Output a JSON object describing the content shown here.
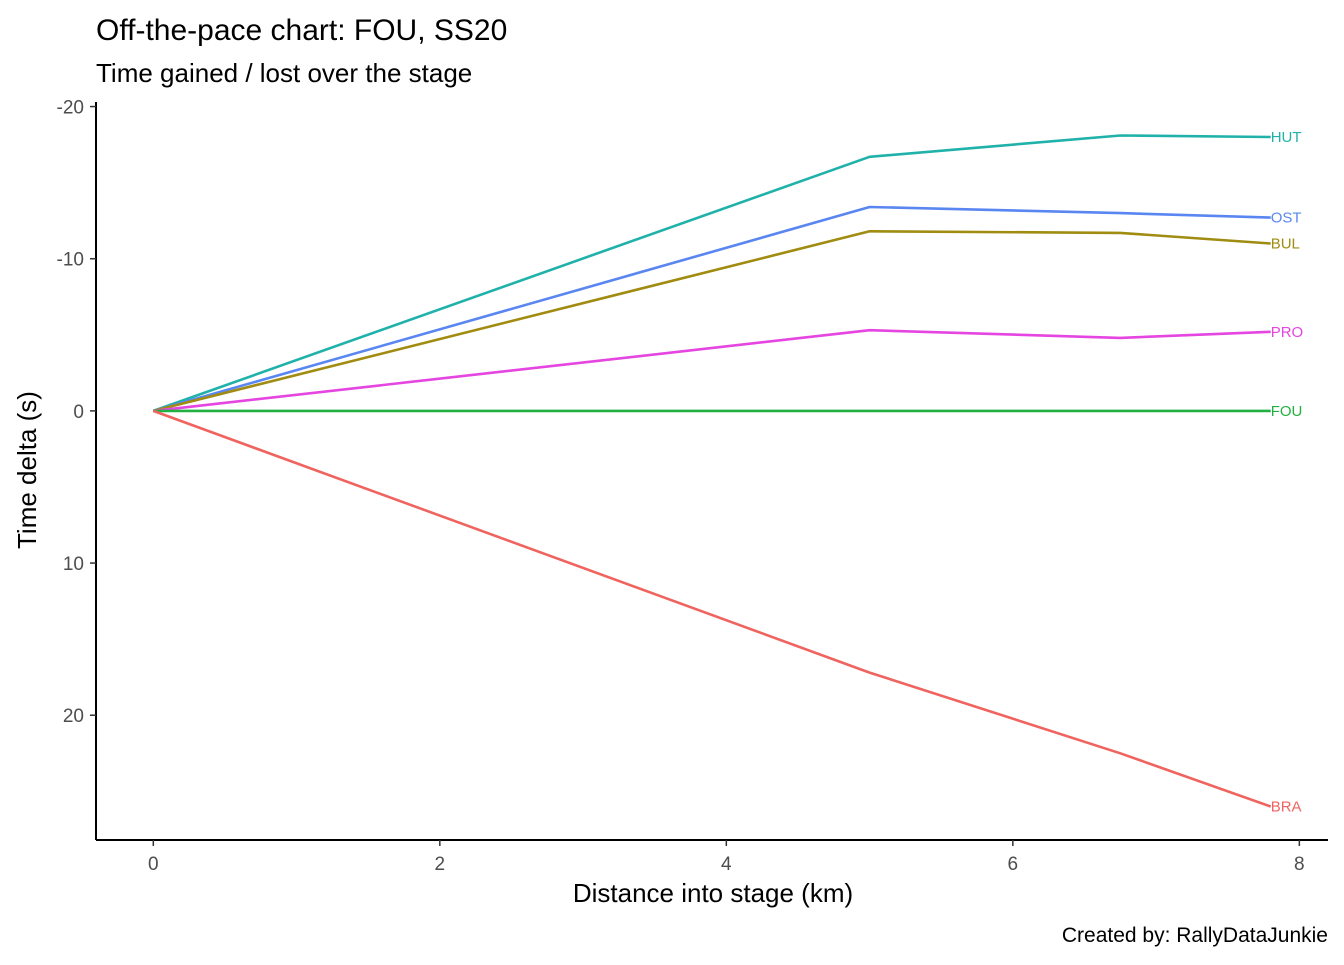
{
  "chart_data": {
    "type": "line",
    "title": "Off-the-pace chart: FOU, SS20",
    "subtitle": "Time gained / lost over the stage",
    "xlabel": "Distance into stage (km)",
    "ylabel": "Time delta (s)",
    "caption": "Created by: RallyDataJunkie",
    "xlim": [
      -0.4,
      8.2
    ],
    "ylim": [
      -20.3,
      28.2
    ],
    "y_reversed": true,
    "x_ticks": [
      0,
      2,
      4,
      6,
      8
    ],
    "y_ticks": [
      -20,
      -10,
      0,
      10,
      20
    ],
    "grid": false,
    "legend": "none (direct end-of-line labels)",
    "series": [
      {
        "name": "HUT",
        "color": "#20b2aa",
        "x": [
          0,
          5.0,
          6.75,
          7.8
        ],
        "y": [
          0,
          -16.7,
          -18.1,
          -18.0
        ]
      },
      {
        "name": "OST",
        "color": "#5a86f2",
        "x": [
          0,
          5.0,
          6.75,
          7.8
        ],
        "y": [
          0,
          -13.4,
          -13.0,
          -12.7
        ]
      },
      {
        "name": "BUL",
        "color": "#a08c10",
        "x": [
          0,
          5.0,
          6.75,
          7.8
        ],
        "y": [
          0,
          -11.8,
          -11.7,
          -11.0
        ]
      },
      {
        "name": "PRO",
        "color": "#e545e0",
        "x": [
          0,
          5.0,
          6.75,
          7.8
        ],
        "y": [
          0,
          -5.3,
          -4.8,
          -5.2
        ]
      },
      {
        "name": "FOU",
        "color": "#22b042",
        "x": [
          0,
          5.0,
          6.75,
          7.8
        ],
        "y": [
          0,
          0,
          0,
          0
        ]
      },
      {
        "name": "BRA",
        "color": "#f0645f",
        "x": [
          0,
          5.0,
          6.75,
          7.8
        ],
        "y": [
          0,
          17.2,
          22.5,
          26.0
        ]
      }
    ]
  }
}
